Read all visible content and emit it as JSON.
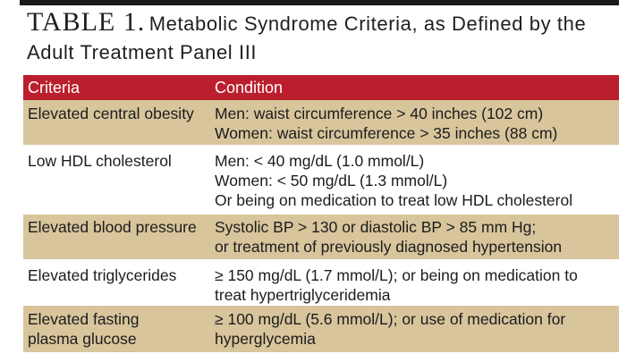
{
  "title": {
    "label": "TABLE 1.",
    "text": "Metabolic Syndrome Criteria, as Defined by the Adult Treatment Panel III"
  },
  "table": {
    "headers": {
      "criteria": "Criteria",
      "condition": "Condition"
    },
    "rows": [
      {
        "criteria": "Elevated central obesity",
        "condition": [
          "Men: waist circumference > 40 inches (102 cm)",
          "Women: waist circumference > 35 inches (88 cm)"
        ]
      },
      {
        "criteria": "Low HDL cholesterol",
        "condition": [
          "Men: < 40 mg/dL (1.0 mmol/L)",
          "Women: < 50 mg/dL (1.3 mmol/L)",
          "Or being on medication to treat low HDL cholesterol"
        ]
      },
      {
        "criteria": "Elevated blood pressure",
        "condition": [
          "Systolic BP > 130 or diastolic BP > 85 mm Hg;",
          "or treatment of previously diagnosed hypertension"
        ]
      },
      {
        "criteria": "Elevated triglycerides",
        "condition": [
          "≥ 150 mg/dL (1.7 mmol/L); or being on medication to",
          "treat hypertriglyceridemia"
        ]
      },
      {
        "criteria": "Elevated fasting plasma glucose",
        "condition": [
          "≥ 100 mg/dL (5.6 mmol/L); or use of medication for",
          "hyperglycemia"
        ]
      }
    ]
  },
  "colors": {
    "header_bg": "#bb1e2c",
    "shaded_row_bg": "#d8c59c",
    "top_rule": "#1a1a1a"
  }
}
